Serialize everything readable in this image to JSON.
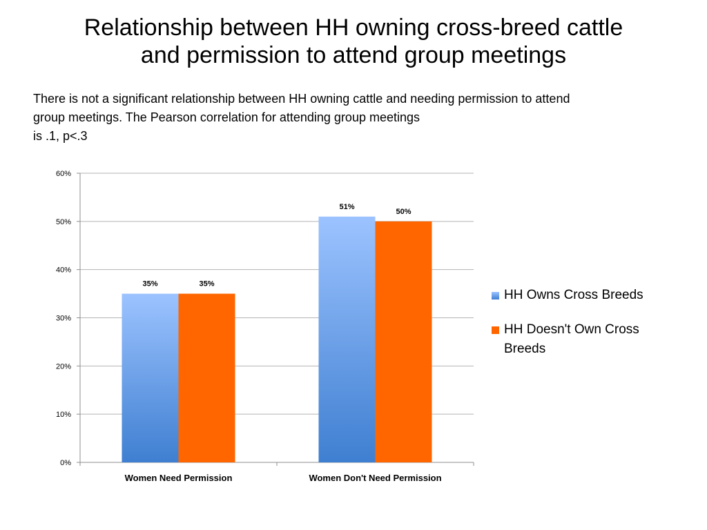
{
  "slide": {
    "title_line1": "Relationship between HH owning cross-breed cattle",
    "title_line2": "and permission to attend group meetings",
    "body_line1": "There is not a significant relationship between HH owning cattle and needing permission to attend",
    "body_line2": "group meetings.  The Pearson correlation for attending group meetings",
    "body_line3": "is .1, p<.3"
  },
  "chart_data": {
    "type": "bar",
    "title": "",
    "xlabel": "",
    "ylabel": "",
    "categories": [
      "Women Need Permission",
      "Women Don't Need Permission"
    ],
    "series": [
      {
        "name": "HH Owns Cross Breeds",
        "values": [
          35,
          51
        ],
        "labels": [
          "35%",
          "51%"
        ],
        "color_top": "#9cc3ff",
        "color_bottom": "#3f7fd1"
      },
      {
        "name": "HH Doesn't Own Cross Breeds",
        "values": [
          35,
          50
        ],
        "labels": [
          "35%",
          "50%"
        ],
        "color": "#ff6600"
      }
    ],
    "ylim": [
      0,
      60
    ],
    "yticks": [
      "0%",
      "10%",
      "20%",
      "30%",
      "40%",
      "50%",
      "60%"
    ],
    "grid": true,
    "legend_position": "right"
  }
}
